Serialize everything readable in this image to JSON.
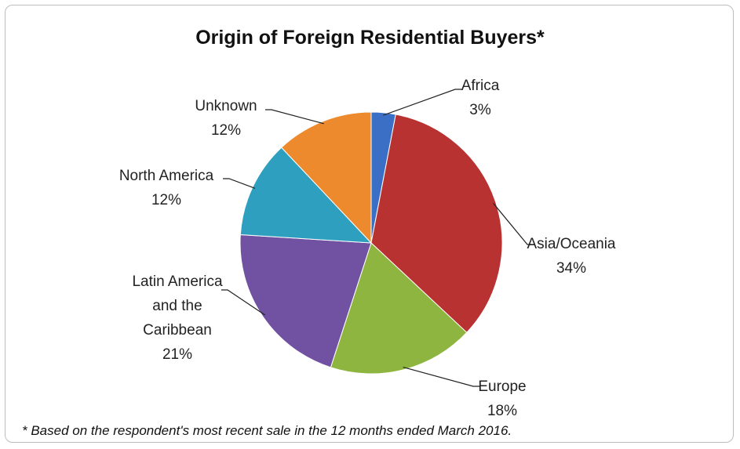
{
  "chart_data": {
    "type": "pie",
    "title": "Origin of Foreign Residential Buyers*",
    "categories": [
      "Africa",
      "Asia/Oceania",
      "Europe",
      "Latin America and the Caribbean",
      "North America",
      "Unknown"
    ],
    "values": [
      3,
      34,
      18,
      21,
      12,
      12
    ],
    "value_labels": [
      "3%",
      "34%",
      "18%",
      "21%",
      "12%",
      "12%"
    ],
    "colors": [
      "#3b6fc5",
      "#b93232",
      "#8db53f",
      "#7151a1",
      "#2f9fc0",
      "#ec8a2d"
    ],
    "footnote": "* Based on the respondent's most recent sale in the 12 months ended March 2016."
  }
}
